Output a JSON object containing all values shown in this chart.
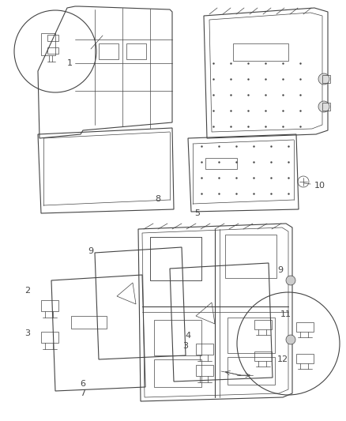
{
  "bg_color": "#f5f5f5",
  "line_color": "#444444",
  "label_color": "#222222",
  "lw": 0.8,
  "lw_thin": 0.5,
  "lw_thick": 1.0
}
